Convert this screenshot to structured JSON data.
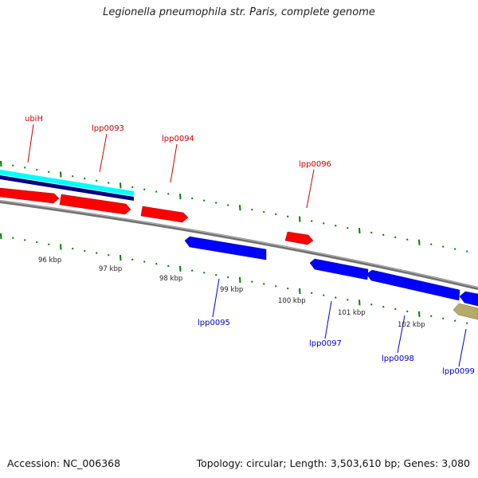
{
  "title": "Legionella pneumophila str. Paris, complete genome",
  "footer": {
    "accession": "Accession: NC_006368",
    "summary": "Topology: circular; Length: 3,503,610 bp; Genes: 3,080"
  },
  "colors": {
    "forward_gene": "#ff0000",
    "reverse_gene": "#0000ff",
    "other_feature": "#b5aa6a",
    "backbone": "#808080",
    "tick": "#008000",
    "forward_label": "#cc0000",
    "reverse_label": "#0000cc",
    "highlight_cyan": "#00ffff",
    "highlight_navy": "#000080"
  },
  "scale_labels": [
    "96 kbp",
    "97 kbp",
    "98 kbp",
    "99 kbp",
    "100 kbp",
    "101 kbp",
    "102 kbp"
  ],
  "gene_labels": {
    "forward": [
      "ubiH",
      "lpp0093",
      "lpp0094",
      "lpp0096"
    ],
    "reverse": [
      "lpp0095",
      "lpp0097",
      "lpp0098",
      "lpp0099"
    ]
  }
}
